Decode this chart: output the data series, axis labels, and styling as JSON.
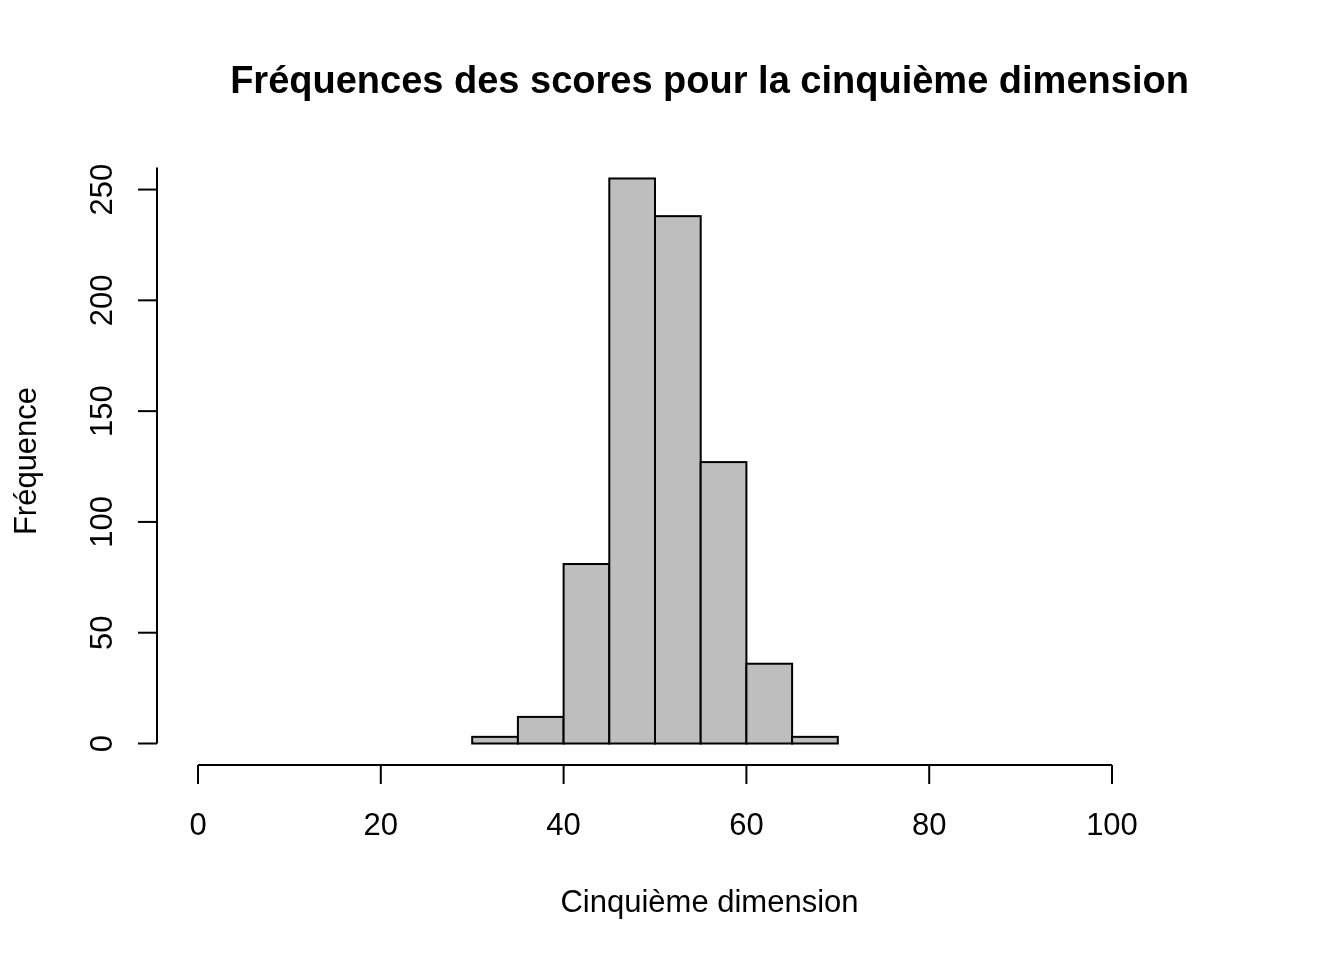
{
  "chart_data": {
    "type": "histogram",
    "title": "Fréquences des scores pour la cinquième dimension",
    "xlabel": "Cinquième dimension",
    "ylabel": "Fréquence",
    "bins": [
      30,
      35,
      40,
      45,
      50,
      55,
      60,
      65,
      70
    ],
    "values": [
      3,
      12,
      81,
      255,
      238,
      127,
      36,
      3
    ],
    "color": "#bebebe",
    "xlim": [
      0,
      100
    ],
    "xticks": [
      0,
      20,
      40,
      60,
      80,
      100
    ],
    "ylim": [
      0,
      260
    ],
    "yticks": [
      0,
      50,
      100,
      150,
      200,
      250
    ]
  }
}
